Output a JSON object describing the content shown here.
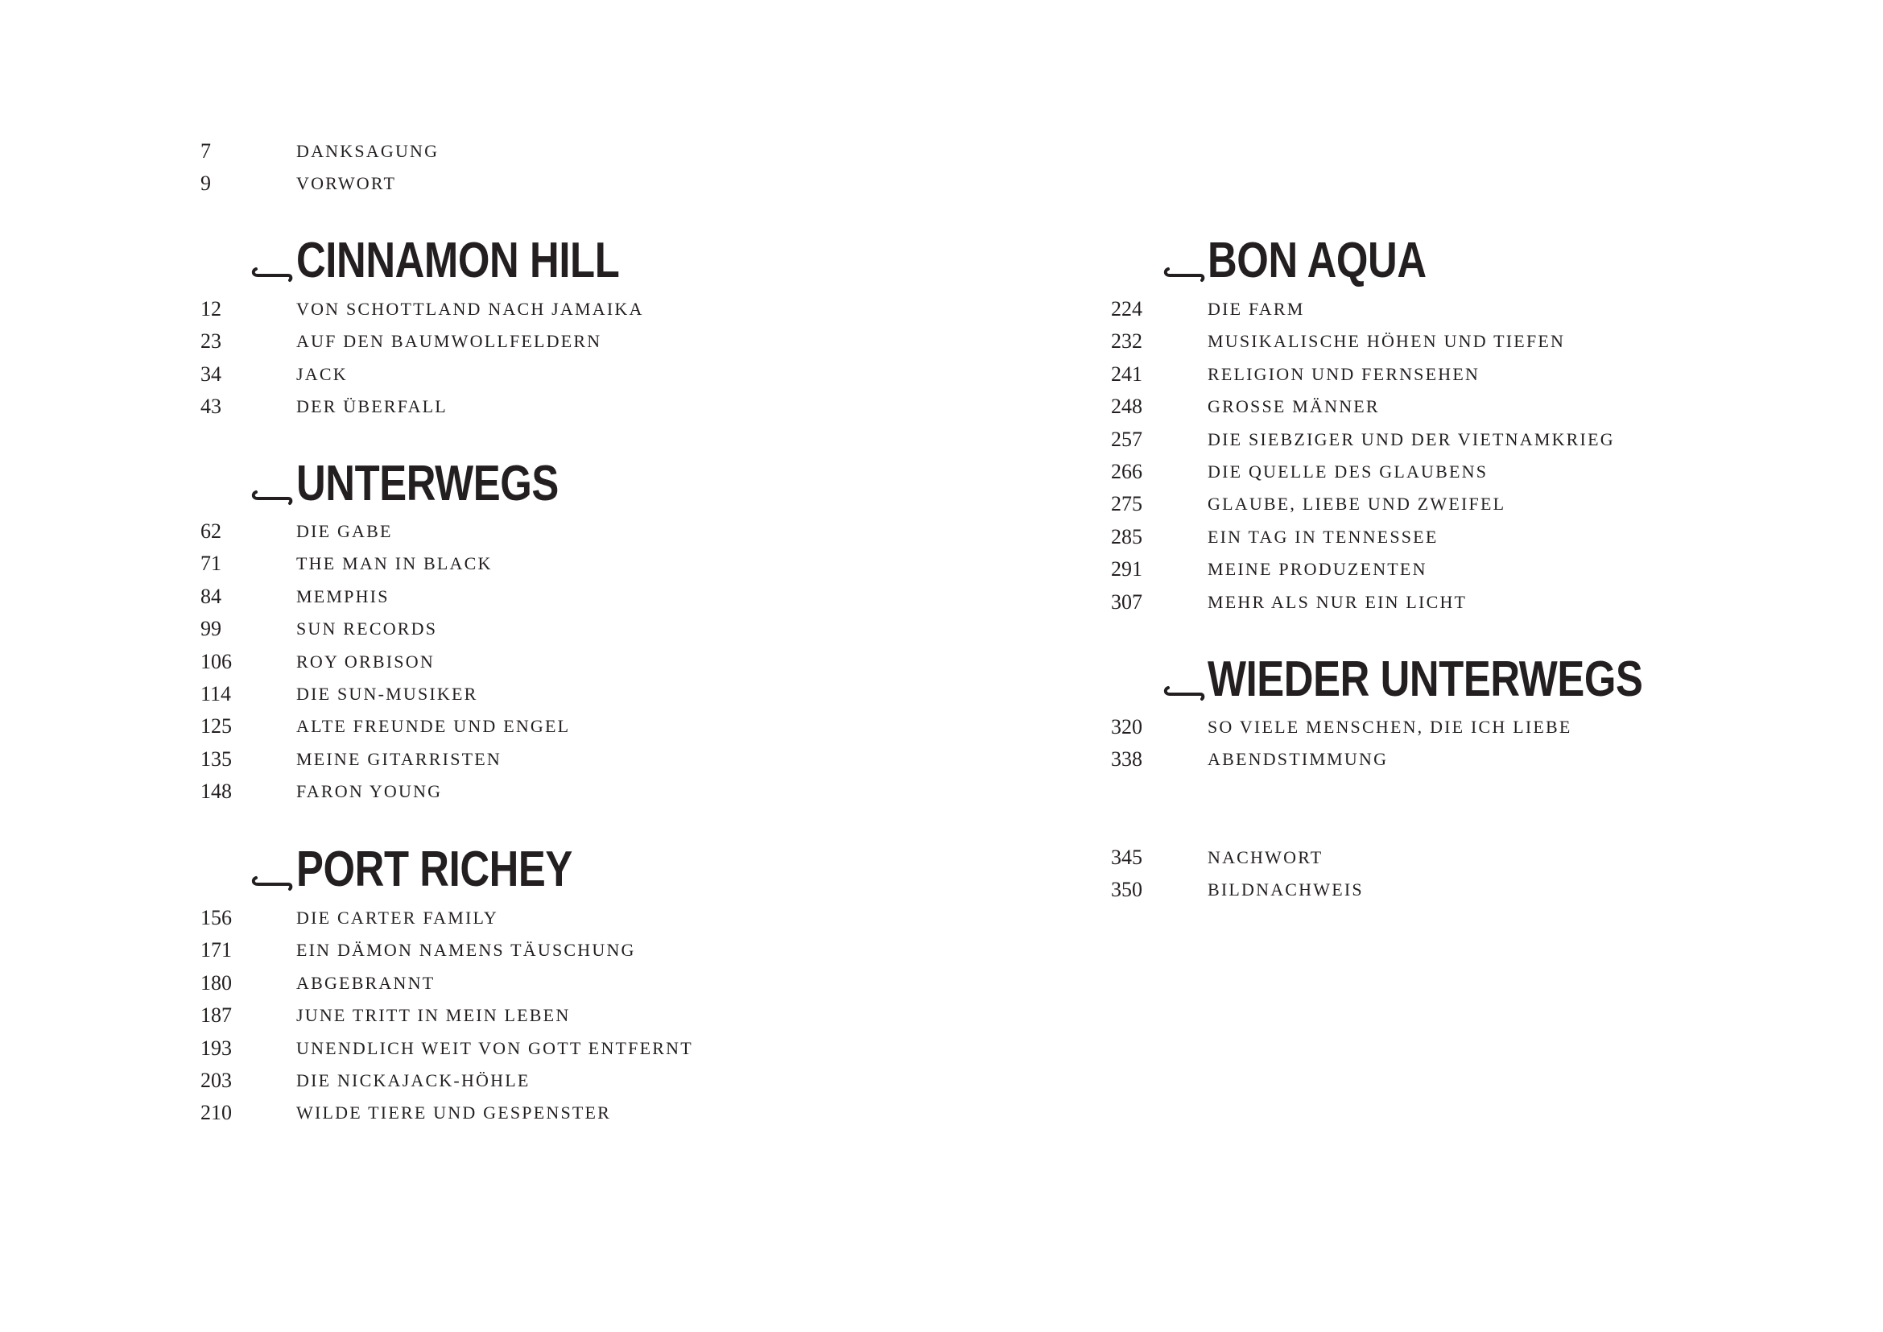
{
  "front": [
    {
      "page": "7",
      "title": "Danksagung"
    },
    {
      "page": "9",
      "title": "Vorwort"
    }
  ],
  "sections": [
    {
      "heading": "CINNAMON HILL",
      "entries": [
        {
          "page": "12",
          "title": "Von Schottland nach Jamaika"
        },
        {
          "page": "23",
          "title": "Auf den Baumwollfeldern"
        },
        {
          "page": "34",
          "title": "Jack"
        },
        {
          "page": "43",
          "title": "Der Überfall"
        }
      ]
    },
    {
      "heading": "UNTERWEGS",
      "entries": [
        {
          "page": "62",
          "title": "Die Gabe"
        },
        {
          "page": "71",
          "title": "The Man in Black"
        },
        {
          "page": "84",
          "title": "Memphis"
        },
        {
          "page": "99",
          "title": "Sun Records"
        },
        {
          "page": "106",
          "title": "Roy Orbison"
        },
        {
          "page": "114",
          "title": "Die Sun-Musiker"
        },
        {
          "page": "125",
          "title": "Alte Freunde und Engel"
        },
        {
          "page": "135",
          "title": "Meine Gitarristen"
        },
        {
          "page": "148",
          "title": "Faron Young"
        }
      ]
    },
    {
      "heading": "PORT RICHEY",
      "entries": [
        {
          "page": "156",
          "title": "Die Carter Family"
        },
        {
          "page": "171",
          "title": "Ein Dämon namens Täuschung"
        },
        {
          "page": "180",
          "title": "Abgebrannt"
        },
        {
          "page": "187",
          "title": "June tritt in mein Leben"
        },
        {
          "page": "193",
          "title": "Unendlich weit von Gott entfernt"
        },
        {
          "page": "203",
          "title": "Die Nickajack-Höhle"
        },
        {
          "page": "210",
          "title": "Wilde Tiere und Gespenster"
        }
      ]
    },
    {
      "heading": "BON AQUA",
      "entries": [
        {
          "page": "224",
          "title": "Die Farm"
        },
        {
          "page": "232",
          "title": "Musikalische Höhen und Tiefen"
        },
        {
          "page": "241",
          "title": "Religion und Fernsehen"
        },
        {
          "page": "248",
          "title": "Grosse Männer"
        },
        {
          "page": "257",
          "title": "Die Siebziger und der Vietnamkrieg"
        },
        {
          "page": "266",
          "title": "Die Quelle des Glaubens"
        },
        {
          "page": "275",
          "title": "Glaube, Liebe und Zweifel"
        },
        {
          "page": "285",
          "title": "Ein Tag in Tennessee"
        },
        {
          "page": "291",
          "title": "Meine Produzenten"
        },
        {
          "page": "307",
          "title": "Mehr als nur ein Licht"
        }
      ]
    },
    {
      "heading": "WIEDER UNTERWEGS",
      "entries": [
        {
          "page": "320",
          "title": "So viele Menschen, die ich liebe"
        },
        {
          "page": "338",
          "title": "Abendstimmung"
        }
      ]
    }
  ],
  "back": [
    {
      "page": "345",
      "title": "Nachwort"
    },
    {
      "page": "350",
      "title": "Bildnachweis"
    }
  ],
  "heading_icon": "ornamental-dash-icon"
}
